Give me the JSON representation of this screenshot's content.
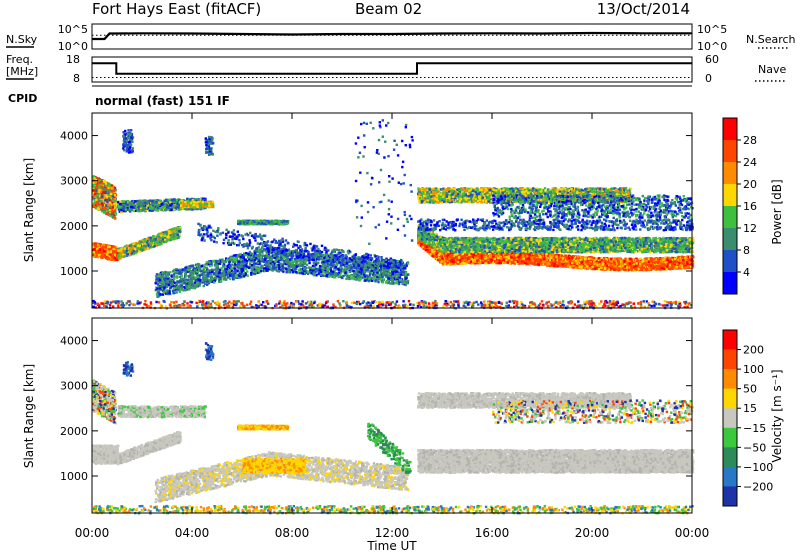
{
  "header": {
    "station": "Fort Hays East (fitACF)",
    "beam": "Beam 02",
    "date": "13/Oct/2014"
  },
  "left_labels": {
    "nsky": "N.Sky",
    "freq_top": "Freq.",
    "freq_unit": "[MHz]",
    "cpid": "CPID"
  },
  "right_labels": {
    "nsearch": "N.Search",
    "nave": "Nave"
  },
  "cpid_text": "normal (fast) 151 IF",
  "chart_data": [
    {
      "type": "line",
      "panel": "noise",
      "y_ticks": [
        "10^5",
        "10^0"
      ],
      "y2_ticks": [
        "10^5",
        "10^0"
      ],
      "series": [
        {
          "name": "N.Sky",
          "x": [
            0,
            0.5,
            0.7,
            1,
            2,
            4,
            6,
            8,
            10,
            12,
            14,
            16,
            18,
            20,
            22,
            24
          ],
          "y": [
            0.4,
            0.4,
            0.62,
            0.62,
            0.63,
            0.62,
            0.6,
            0.58,
            0.6,
            0.6,
            0.62,
            0.63,
            0.62,
            0.64,
            0.63,
            0.63
          ]
        },
        {
          "name": "N.Search",
          "x": [
            0,
            4,
            8,
            12,
            16,
            20,
            24
          ],
          "y": [
            0.55,
            0.55,
            0.55,
            0.55,
            0.55,
            0.55,
            0.55
          ]
        }
      ]
    },
    {
      "type": "line",
      "panel": "frequency",
      "y_ticks": [
        "18",
        "8"
      ],
      "y2_ticks": [
        "60",
        "0"
      ],
      "series": [
        {
          "name": "Freq.",
          "x": [
            0,
            0.97,
            0.97,
            13,
            13,
            24
          ],
          "y": [
            16,
            16,
            11,
            11,
            16,
            16
          ]
        },
        {
          "name": "Nave",
          "x": [
            0,
            6,
            12,
            18,
            24
          ],
          "y": [
            6,
            6,
            6,
            6,
            6
          ]
        }
      ]
    },
    {
      "type": "heatmap",
      "panel": "power",
      "ylabel": "Slant Range [km]",
      "ylim": [
        180,
        4500
      ],
      "y_ticks": [
        1000,
        2000,
        3000,
        4000
      ],
      "colorbar_label": "Power [dB]",
      "colorbar_ticks": [
        4,
        8,
        12,
        16,
        20,
        24,
        28
      ],
      "colorbar_colors": [
        "#0000ff",
        "#2050c8",
        "#3c8c6e",
        "#3fbf3f",
        "#ffd700",
        "#ff8c00",
        "#ff4500",
        "#ff0000"
      ]
    },
    {
      "type": "heatmap",
      "panel": "velocity",
      "ylabel": "Slant Range [km]",
      "xlabel": "Time UT",
      "ylim": [
        180,
        4500
      ],
      "y_ticks": [
        1000,
        2000,
        3000,
        4000
      ],
      "x_ticks": [
        "00:00",
        "04:00",
        "08:00",
        "12:00",
        "16:00",
        "20:00",
        "00:00"
      ],
      "colorbar_label": "Velocity [m s⁻¹]",
      "colorbar_ticks": [
        "200",
        "100",
        "50",
        "15",
        "−15",
        "−50",
        "−100",
        "−200"
      ],
      "colorbar_colors": [
        "#1e32aa",
        "#2878c8",
        "#2e8b57",
        "#3cc83c",
        "#c8c8c0",
        "#ffd700",
        "#ff8c00",
        "#ff4500",
        "#ff0000"
      ]
    }
  ]
}
